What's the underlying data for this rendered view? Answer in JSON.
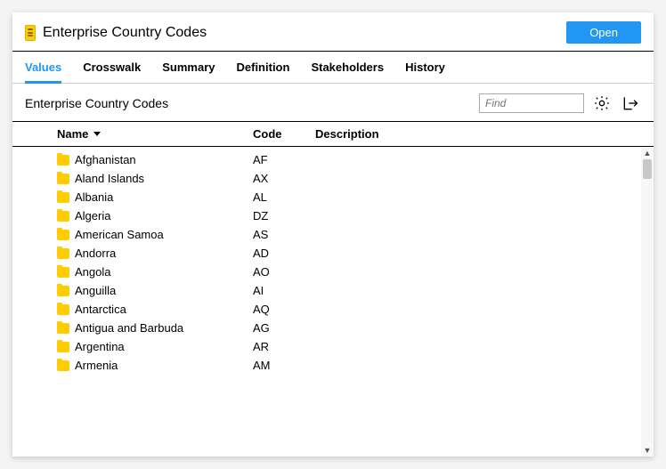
{
  "colors": {
    "accent": "#2196f3",
    "folder": "#ffcc00",
    "background": "#ffffff"
  },
  "header": {
    "title": "Enterprise Country Codes",
    "open_label": "Open"
  },
  "tabs": [
    {
      "label": "Values",
      "active": true
    },
    {
      "label": "Crosswalk",
      "active": false
    },
    {
      "label": "Summary",
      "active": false
    },
    {
      "label": "Definition",
      "active": false
    },
    {
      "label": "Stakeholders",
      "active": false
    },
    {
      "label": "History",
      "active": false
    }
  ],
  "subheader": {
    "title": "Enterprise Country Codes",
    "find_placeholder": "Find"
  },
  "columns": {
    "name": "Name",
    "code": "Code",
    "description": "Description",
    "sort": {
      "column": "name",
      "direction": "asc_indicator_down"
    }
  },
  "rows": [
    {
      "name": "Afghanistan",
      "code": "AF",
      "description": ""
    },
    {
      "name": "Aland Islands",
      "code": "AX",
      "description": ""
    },
    {
      "name": "Albania",
      "code": "AL",
      "description": ""
    },
    {
      "name": "Algeria",
      "code": "DZ",
      "description": ""
    },
    {
      "name": "American Samoa",
      "code": "AS",
      "description": ""
    },
    {
      "name": "Andorra",
      "code": "AD",
      "description": ""
    },
    {
      "name": "Angola",
      "code": "AO",
      "description": ""
    },
    {
      "name": "Anguilla",
      "code": "AI",
      "description": ""
    },
    {
      "name": "Antarctica",
      "code": "AQ",
      "description": ""
    },
    {
      "name": "Antigua and Barbuda",
      "code": "AG",
      "description": ""
    },
    {
      "name": "Argentina",
      "code": "AR",
      "description": ""
    },
    {
      "name": "Armenia",
      "code": "AM",
      "description": ""
    }
  ]
}
